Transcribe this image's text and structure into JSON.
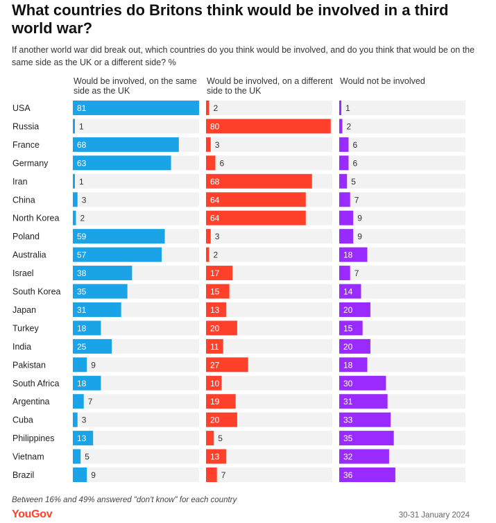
{
  "title": "What countries do Britons think would be involved in a third world war?",
  "subtitle": "If another world war did break out, which countries do you think would be involved, and do you think that would be on the same side as the UK or a different side? %",
  "footnote": "Between 16% and 49% answered \"don't know\" for each country",
  "logo": "YouGov",
  "date": "30-31 January 2024",
  "colors": {
    "same": "#1aa3e6",
    "different": "#ff412c",
    "not": "#9a2bff",
    "track": "#f2f2f2"
  },
  "chart_data": {
    "type": "bar",
    "categories": [
      "USA",
      "Russia",
      "France",
      "Germany",
      "Iran",
      "China",
      "North Korea",
      "Poland",
      "Australia",
      "Israel",
      "South Korea",
      "Japan",
      "Turkey",
      "India",
      "Pakistan",
      "South Africa",
      "Argentina",
      "Cuba",
      "Philippines",
      "Vietnam",
      "Brazil"
    ],
    "series": [
      {
        "name": "Would be involved, on the same side as the UK",
        "values": [
          81,
          1,
          68,
          63,
          1,
          3,
          2,
          59,
          57,
          38,
          35,
          31,
          18,
          25,
          9,
          18,
          7,
          3,
          13,
          5,
          9
        ]
      },
      {
        "name": "Would be involved, on a different side to the UK",
        "values": [
          2,
          80,
          3,
          6,
          68,
          64,
          64,
          3,
          2,
          17,
          15,
          13,
          20,
          11,
          27,
          10,
          19,
          20,
          5,
          13,
          7
        ]
      },
      {
        "name": "Would not be involved",
        "values": [
          1,
          2,
          6,
          6,
          5,
          7,
          9,
          9,
          18,
          7,
          14,
          20,
          15,
          20,
          18,
          30,
          31,
          33,
          35,
          32,
          36
        ]
      }
    ],
    "xlim": [
      0,
      81
    ]
  }
}
